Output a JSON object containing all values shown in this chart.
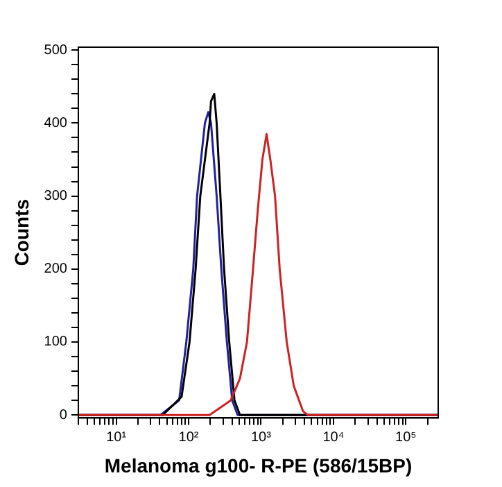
{
  "chart_data": {
    "type": "line",
    "xlabel": "Melanoma g100- R-PE (586/15BP)",
    "ylabel": "Counts",
    "log": "x",
    "grid": false,
    "legend": false,
    "marker": "none",
    "line_style": "solid",
    "xlim": [
      3,
      280000
    ],
    "xticks": [
      {
        "value": 3,
        "label": null
      },
      {
        "value": 4,
        "label": null
      },
      {
        "value": 5,
        "label": null
      },
      {
        "value": 6,
        "label": null
      },
      {
        "value": 7,
        "label": null
      },
      {
        "value": 8,
        "label": null
      },
      {
        "value": 9,
        "label": null
      },
      {
        "value": 10,
        "label": "10¹"
      },
      {
        "value": 20,
        "label": null
      },
      {
        "value": 30,
        "label": null
      },
      {
        "value": 40,
        "label": null
      },
      {
        "value": 50,
        "label": null
      },
      {
        "value": 60,
        "label": null
      },
      {
        "value": 70,
        "label": null
      },
      {
        "value": 80,
        "label": null
      },
      {
        "value": 90,
        "label": null
      },
      {
        "value": 100,
        "label": "10²"
      },
      {
        "value": 200,
        "label": null
      },
      {
        "value": 300,
        "label": null
      },
      {
        "value": 400,
        "label": null
      },
      {
        "value": 500,
        "label": null
      },
      {
        "value": 600,
        "label": null
      },
      {
        "value": 700,
        "label": null
      },
      {
        "value": 800,
        "label": null
      },
      {
        "value": 900,
        "label": null
      },
      {
        "value": 1000,
        "label": "10³"
      },
      {
        "value": 2000,
        "label": null
      },
      {
        "value": 3000,
        "label": null
      },
      {
        "value": 4000,
        "label": null
      },
      {
        "value": 5000,
        "label": null
      },
      {
        "value": 6000,
        "label": null
      },
      {
        "value": 7000,
        "label": null
      },
      {
        "value": 8000,
        "label": null
      },
      {
        "value": 9000,
        "label": null
      },
      {
        "value": 10000,
        "label": "10⁴"
      },
      {
        "value": 20000,
        "label": null
      },
      {
        "value": 30000,
        "label": null
      },
      {
        "value": 40000,
        "label": null
      },
      {
        "value": 50000,
        "label": null
      },
      {
        "value": 60000,
        "label": null
      },
      {
        "value": 70000,
        "label": null
      },
      {
        "value": 80000,
        "label": null
      },
      {
        "value": 90000,
        "label": null
      },
      {
        "value": 100000,
        "label": "10⁵"
      },
      {
        "value": 200000,
        "label": null
      }
    ],
    "ylim": [
      -4,
      504
    ],
    "yticks": [
      0,
      {
        "value": 20,
        "label": null
      },
      {
        "value": 40,
        "label": null
      },
      {
        "value": 60,
        "label": null
      },
      {
        "value": 80,
        "label": null
      },
      100,
      {
        "value": 120,
        "label": null
      },
      {
        "value": 140,
        "label": null
      },
      {
        "value": 160,
        "label": null
      },
      {
        "value": 180,
        "label": null
      },
      200,
      {
        "value": 220,
        "label": null
      },
      {
        "value": 240,
        "label": null
      },
      {
        "value": 260,
        "label": null
      },
      {
        "value": 280,
        "label": null
      },
      300,
      {
        "value": 320,
        "label": null
      },
      {
        "value": 340,
        "label": null
      },
      {
        "value": 360,
        "label": null
      },
      {
        "value": 380,
        "label": null
      },
      400,
      {
        "value": 420,
        "label": null
      },
      {
        "value": 440,
        "label": null
      },
      {
        "value": 460,
        "label": null
      },
      {
        "value": 480,
        "label": null
      },
      500
    ],
    "series": [
      {
        "color": "#cc2222",
        "x": [
          3,
          195,
          381,
          512,
          640,
          776,
          901,
          1045,
          1194,
          1345,
          1562,
          1811,
          2265,
          2832,
          3811,
          4420,
          280000
        ],
        "values": [
          0,
          0,
          20,
          50,
          100,
          200,
          280,
          350,
          385,
          350,
          300,
          200,
          100,
          40,
          5,
          0,
          0
        ]
      },
      {
        "color": "#000000",
        "x": [
          3,
          44,
          80,
          103,
          125,
          145,
          195,
          204,
          226,
          244,
          275,
          309,
          364,
          430,
          512,
          280000
        ],
        "values": [
          0,
          0,
          25,
          100,
          200,
          300,
          400,
          430,
          440,
          400,
          300,
          200,
          100,
          20,
          0,
          0
        ]
      },
      {
        "color": "#2020a0",
        "x": [
          3,
          41,
          74,
          93,
          116,
          131,
          168,
          187,
          204,
          244,
          283,
          338,
          400,
          476,
          280000
        ],
        "values": [
          0,
          0,
          20,
          100,
          200,
          300,
          400,
          415,
          400,
          300,
          200,
          100,
          20,
          0,
          0
        ]
      }
    ]
  }
}
